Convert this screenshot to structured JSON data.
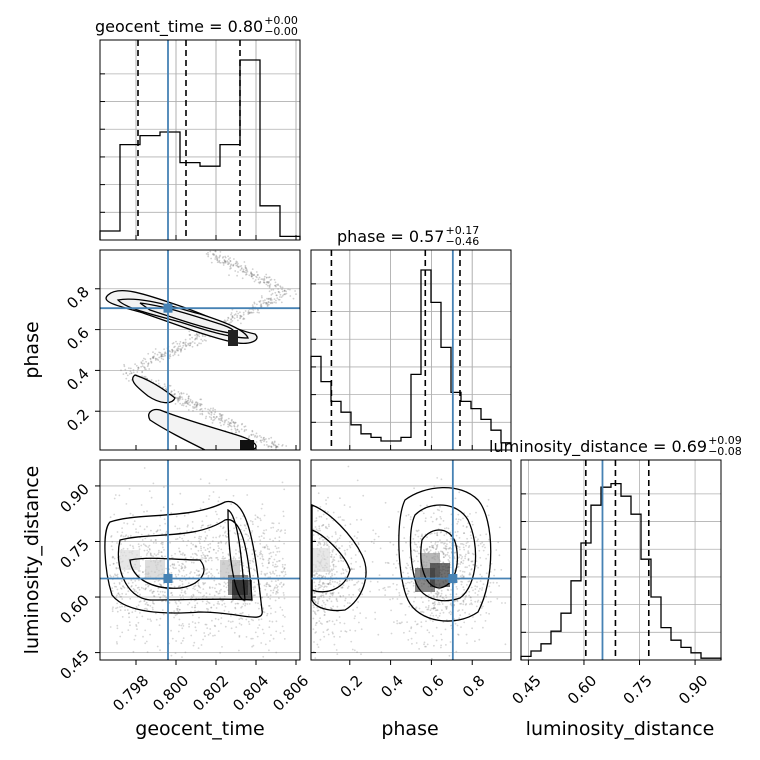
{
  "chart_data": {
    "type": "corner",
    "parameters": [
      "geocent_time",
      "phase",
      "luminosity_distance"
    ],
    "truth": {
      "geocent_time": 0.7996,
      "phase": 0.705,
      "luminosity_distance": 0.65
    },
    "ranges": {
      "geocent_time": [
        0.7962,
        0.8062
      ],
      "phase": [
        0.01,
        0.99
      ],
      "luminosity_distance": [
        0.43,
        0.97
      ]
    },
    "titles": [
      {
        "param": "geocent_time",
        "name": "geocent_time",
        "median": "0.80",
        "plus": "+0.00",
        "minus": "−0.00"
      },
      {
        "param": "phase",
        "name": "phase",
        "median": "0.57",
        "plus": "+0.17",
        "minus": "−0.46"
      },
      {
        "param": "luminosity_distance",
        "name": "luminosity_distance",
        "median": "0.69",
        "plus": "+0.09",
        "minus": "−0.08"
      }
    ],
    "quantiles": {
      "geocent_time": [
        0.7981,
        0.8005,
        0.8032
      ],
      "phase": [
        0.11,
        0.57,
        0.74
      ],
      "luminosity_distance": [
        0.605,
        0.685,
        0.775
      ]
    },
    "histograms": {
      "geocent_time": {
        "edges": [
          0.7962,
          0.7972,
          0.7982,
          0.7992,
          0.8002,
          0.8012,
          0.8022,
          0.8032,
          0.8042,
          0.8052,
          0.8062
        ],
        "counts": [
          0.05,
          0.53,
          0.58,
          0.6,
          0.43,
          0.41,
          0.53,
          1.0,
          0.19,
          0.02
        ]
      },
      "phase": {
        "edges": [
          0.01,
          0.059,
          0.108,
          0.157,
          0.206,
          0.255,
          0.304,
          0.353,
          0.402,
          0.451,
          0.5,
          0.549,
          0.598,
          0.647,
          0.696,
          0.745,
          0.794,
          0.843,
          0.892,
          0.941,
          0.99
        ],
        "counts": [
          0.52,
          0.38,
          0.27,
          0.21,
          0.14,
          0.09,
          0.07,
          0.05,
          0.05,
          0.07,
          0.42,
          1.0,
          0.82,
          0.57,
          0.32,
          0.27,
          0.23,
          0.17,
          0.11,
          0.04
        ]
      },
      "luminosity_distance": {
        "edges": [
          0.43,
          0.457,
          0.484,
          0.511,
          0.538,
          0.565,
          0.592,
          0.619,
          0.646,
          0.673,
          0.7,
          0.727,
          0.754,
          0.781,
          0.808,
          0.835,
          0.862,
          0.889,
          0.916,
          0.943,
          0.97
        ],
        "counts": [
          0.02,
          0.05,
          0.09,
          0.16,
          0.26,
          0.44,
          0.65,
          0.86,
          0.96,
          0.98,
          0.91,
          0.81,
          0.56,
          0.35,
          0.18,
          0.11,
          0.07,
          0.04,
          0.01,
          0.01
        ]
      }
    },
    "axes": {
      "geocent_time": {
        "ticks": [
          0.798,
          0.8,
          0.802,
          0.804,
          0.806
        ],
        "labels": [
          "0.798",
          "0.800",
          "0.802",
          "0.804",
          "0.806"
        ]
      },
      "phase": {
        "ticks": [
          0.2,
          0.4,
          0.6,
          0.8
        ],
        "labels": [
          "0.2",
          "0.4",
          "0.6",
          "0.8"
        ]
      },
      "luminosity_distance": {
        "ticks": [
          0.45,
          0.6,
          0.75,
          0.9
        ],
        "labels": [
          "0.45",
          "0.60",
          "0.75",
          "0.90"
        ]
      }
    },
    "axis_labels": {
      "geocent_time": "geocent_time",
      "phase": "phase",
      "luminosity_distance": "luminosity_distance"
    },
    "grid": true,
    "colors": {
      "truth": "#4682b4",
      "line": "#000000",
      "grid": "#b0b0b0",
      "points": "#7f7f7f"
    }
  }
}
